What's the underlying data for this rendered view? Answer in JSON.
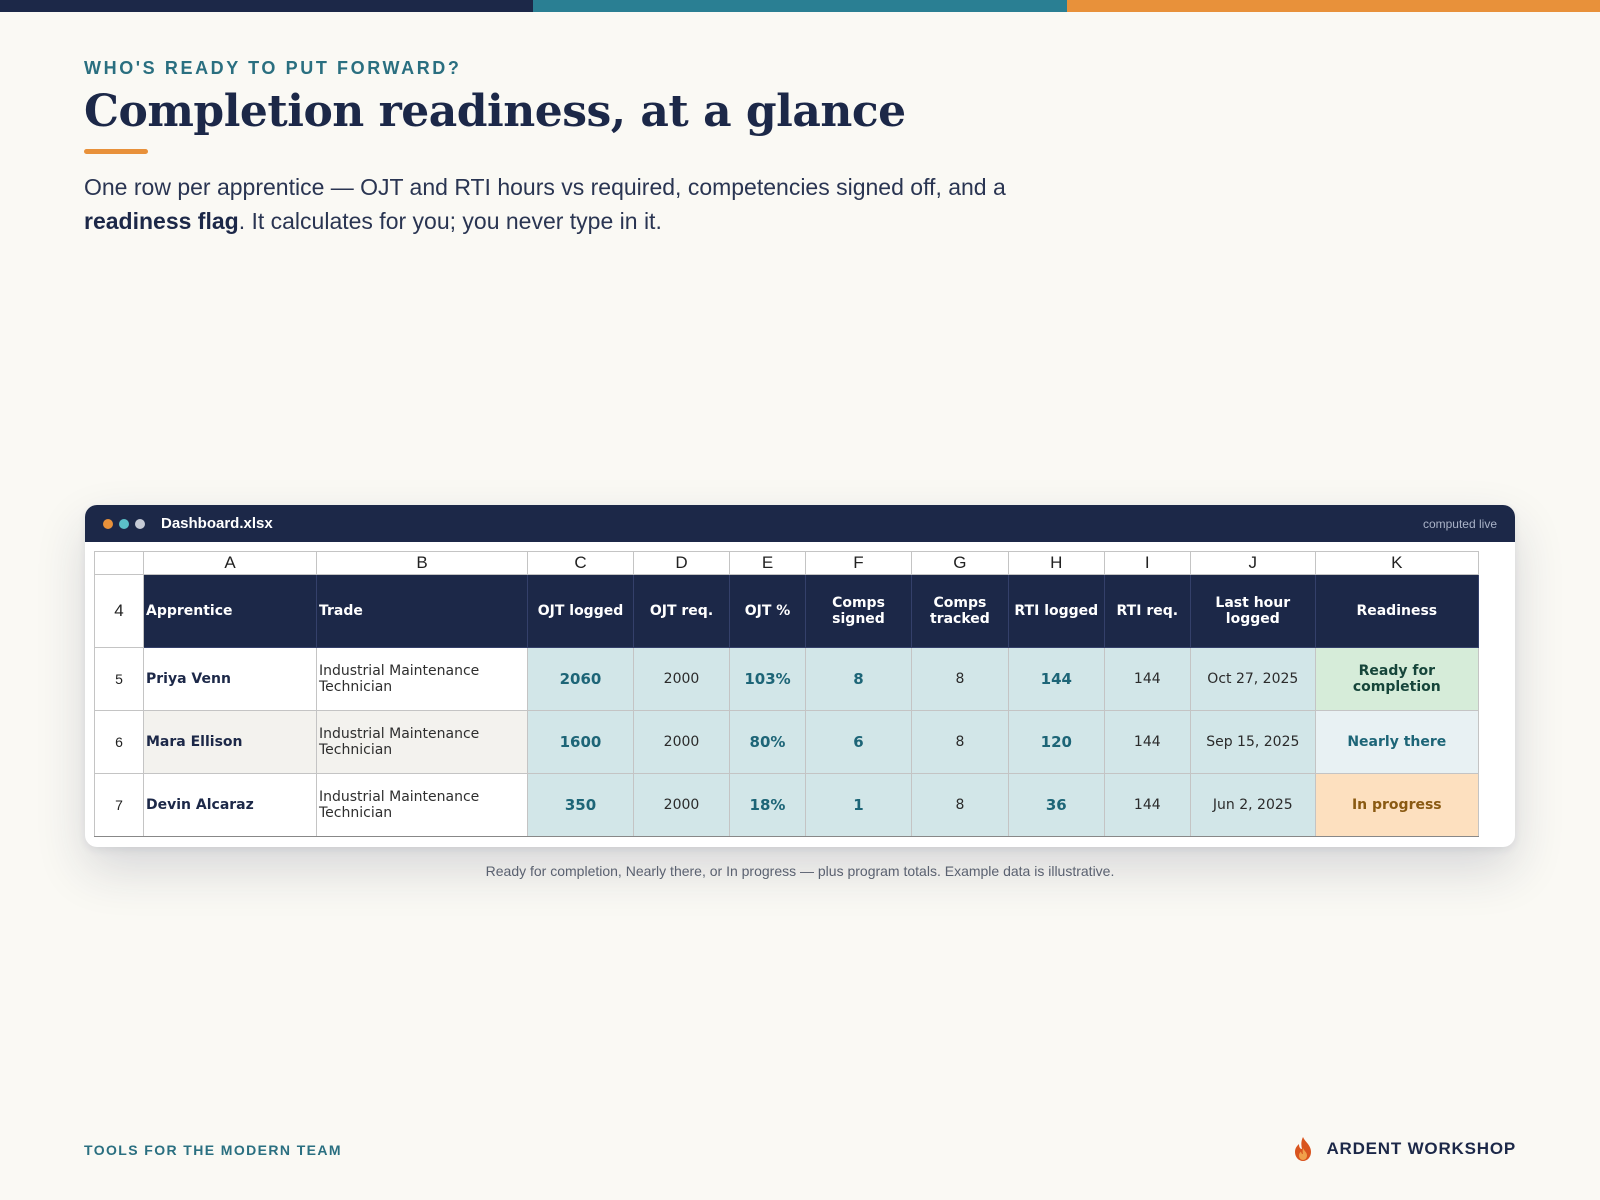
{
  "colors": {
    "navy": "#1c2848",
    "teal": "#2a7f93",
    "orange": "#e8913a",
    "cell_teal": "#d2e6e8",
    "ready_green": "#d6ecd9",
    "nearly_blue": "#e8f1f3",
    "progress_orange": "#fde0bf"
  },
  "header": {
    "eyebrow": "WHO'S READY TO PUT FORWARD?",
    "title": "Completion readiness, at a glance",
    "subtitle_part1": "One row per apprentice — OJT and RTI hours vs required, competencies signed off, and a ",
    "subtitle_bold": "readiness flag",
    "subtitle_part2": ". It calculates for you; you never type in it."
  },
  "window": {
    "filename": "Dashboard.xlsx",
    "status": "computed live",
    "dots": [
      "orange-dot",
      "teal-dot",
      "gray-dot"
    ]
  },
  "sheet": {
    "column_letters": [
      "A",
      "B",
      "C",
      "D",
      "E",
      "F",
      "G",
      "H",
      "I",
      "J",
      "K"
    ],
    "header_row_number": "4",
    "headers": [
      "Apprentice",
      "Trade",
      "OJT logged",
      "OJT req.",
      "OJT %",
      "Comps signed",
      "Comps tracked",
      "RTI logged",
      "RTI req.",
      "Last hour logged",
      "Readiness"
    ],
    "rows": [
      {
        "row": "5",
        "apprentice": "Priya Venn",
        "trade": "Industrial Maintenance Technician",
        "ojt_logged": "2060",
        "ojt_req": "2000",
        "ojt_pct": "103%",
        "comps_signed": "8",
        "comps_tracked": "8",
        "rti_logged": "144",
        "rti_req": "144",
        "last_hour": "Oct 27, 2025",
        "readiness": "Ready for completion"
      },
      {
        "row": "6",
        "apprentice": "Mara Ellison",
        "trade": "Industrial Maintenance Technician",
        "ojt_logged": "1600",
        "ojt_req": "2000",
        "ojt_pct": "80%",
        "comps_signed": "6",
        "comps_tracked": "8",
        "rti_logged": "120",
        "rti_req": "144",
        "last_hour": "Sep 15, 2025",
        "readiness": "Nearly there"
      },
      {
        "row": "7",
        "apprentice": "Devin Alcaraz",
        "trade": "Industrial Maintenance Technician",
        "ojt_logged": "350",
        "ojt_req": "2000",
        "ojt_pct": "18%",
        "comps_signed": "1",
        "comps_tracked": "8",
        "rti_logged": "36",
        "rti_req": "144",
        "last_hour": "Jun 2, 2025",
        "readiness": "In progress"
      }
    ]
  },
  "caption": "Ready for completion, Nearly there, or In progress — plus program totals. Example data is illustrative.",
  "footer": {
    "tagline": "TOOLS FOR THE MODERN TEAM",
    "brand": "ARDENT WORKSHOP",
    "brand_icon": "flame-icon"
  }
}
